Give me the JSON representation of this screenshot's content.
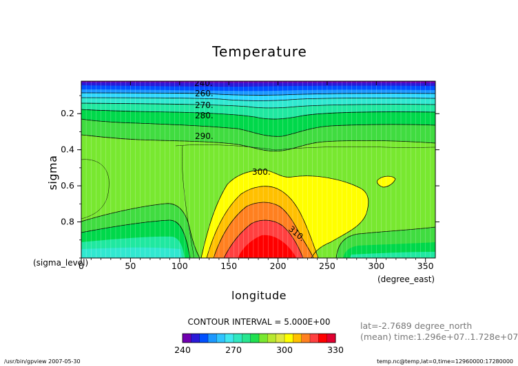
{
  "chart_data": {
    "type": "heatmap",
    "title": "Temperature",
    "xlabel": "longitude",
    "ylabel": "sigma",
    "x_sub_left": "(sigma_level)",
    "x_sub_right": "(degree_east)",
    "xlim": [
      0,
      360
    ],
    "ylim": [
      1.0,
      0.02
    ],
    "y_inverted": true,
    "x_ticks": [
      "0",
      "50",
      "100",
      "150",
      "200",
      "250",
      "300",
      "350"
    ],
    "y_ticks": [
      "0.2",
      "0.4",
      "0.6",
      "0.8"
    ],
    "contour_levels": [
      240,
      245,
      250,
      255,
      260,
      265,
      270,
      275,
      280,
      285,
      290,
      295,
      300,
      305,
      310,
      315,
      320,
      325,
      330
    ],
    "contour_labels": [
      "240.",
      "260.",
      "270.",
      "280.",
      "290.",
      "300.",
      "310."
    ],
    "contour_interval_text": "CONTOUR INTERVAL = 5.000E+00",
    "colorbar": {
      "tick_labels": [
        "240",
        "270",
        "300",
        "330"
      ],
      "colors": [
        "#7000b0",
        "#2a1ad8",
        "#0050ff",
        "#1c98ff",
        "#30c4ff",
        "#40e8f0",
        "#30e8c0",
        "#28e690",
        "#20e050",
        "#78e830",
        "#b8e830",
        "#e0e840",
        "#ffff00",
        "#ffc000",
        "#ff8020",
        "#ff4040",
        "#ff0000",
        "#e00030"
      ]
    },
    "annotations": {
      "lat": "lat=-2.7689 degree_north",
      "mean": "(mean) time:1.296e+07..1.728e+07"
    }
  },
  "footer": {
    "left": "/usr/bin/gpview  2007-05-30",
    "right": "temp.nc@temp,lat=0,time=12960000:17280000"
  }
}
